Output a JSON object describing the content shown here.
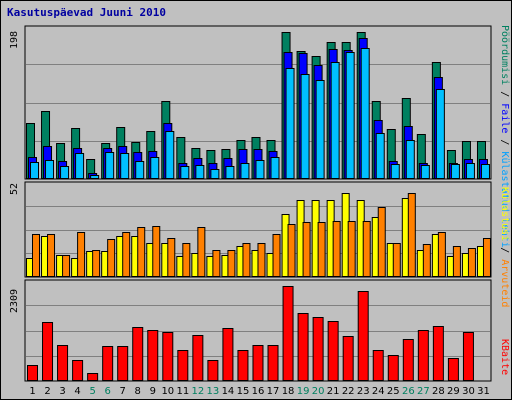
{
  "chart_data": {
    "title": "Kasutuspäevad Juuni 2010",
    "type": "bar",
    "categories": [
      "1",
      "2",
      "3",
      "4",
      "5",
      "6",
      "7",
      "8",
      "9",
      "10",
      "11",
      "12",
      "13",
      "14",
      "15",
      "16",
      "17",
      "18",
      "19",
      "20",
      "21",
      "22",
      "23",
      "24",
      "25",
      "26",
      "27",
      "28",
      "29",
      "30",
      "31"
    ],
    "weekend_days": [
      "5",
      "6",
      "12",
      "13",
      "19",
      "20",
      "26",
      "27"
    ],
    "weekend_color": "#008060",
    "weekday_color": "#000000",
    "panels": [
      {
        "id": "top",
        "ymax_label": "198",
        "ymax": 198,
        "right_label_parts": [
          {
            "text": "Pöördumisi",
            "color": "#008060"
          },
          {
            "text": " / ",
            "color": "#000000"
          },
          {
            "text": "Faile",
            "color": "#0000ff"
          },
          {
            "text": " / ",
            "color": "#000000"
          },
          {
            "text": "Külastatud lehti",
            "color": "#00a0ff"
          }
        ],
        "series": [
          {
            "name": "Pöördumisi",
            "color": "#008060",
            "values": [
              76,
              91,
              48,
              69,
              27,
              48,
              70,
              50,
              64,
              105,
              57,
              42,
              39,
              41,
              52,
              56,
              53,
              198,
              172,
              165,
              185,
              185,
              198,
              105,
              68,
              109,
              60,
              158,
              39,
              51,
              51
            ]
          },
          {
            "name": "Faile",
            "color": "#0000ff",
            "values": [
              30,
              44,
              24,
              42,
              8,
              42,
              45,
              37,
              38,
              76,
              22,
              28,
              21,
              28,
              41,
              40,
              38,
              171,
              170,
              153,
              175,
              174,
              190,
              80,
              24,
              72,
              21,
              138,
              21,
              27,
              27
            ]
          },
          {
            "name": "Külastatud lehti",
            "color": "#00c0ff",
            "values": [
              23,
              26,
              17,
              35,
              5,
              36,
              35,
              24,
              30,
              64,
              18,
              19,
              14,
              18,
              21,
              25,
              29,
              150,
              141,
              134,
              158,
              171,
              176,
              62,
              20,
              52,
              19,
              121,
              20,
              22,
              20
            ]
          }
        ]
      },
      {
        "id": "middle",
        "ymax_label": "52",
        "ymax": 52,
        "right_label_parts": [
          {
            "text": "Külastusi",
            "color": "#ffff00"
          },
          {
            "text": " / ",
            "color": "#000000"
          },
          {
            "text": "Arvuteid",
            "color": "#ff8000"
          }
        ],
        "series": [
          {
            "name": "Külastusi",
            "color": "#ffff00",
            "values": [
              11,
              24,
              13,
              11,
              15,
              15,
              24,
              24,
              20,
              20,
              12,
              14,
              12,
              13,
              18,
              16,
              14,
              37,
              45,
              45,
              45,
              49,
              45,
              35,
              20,
              46,
              16,
              25,
              12,
              14,
              18
            ]
          },
          {
            "name": "Arvuteid",
            "color": "#ff8000",
            "values": [
              25,
              25,
              13,
              26,
              16,
              22,
              26,
              29,
              30,
              23,
              20,
              29,
              16,
              16,
              20,
              20,
              25,
              31,
              32,
              32,
              33,
              33,
              33,
              41,
              20,
              49,
              19,
              26,
              18,
              17,
              23
            ]
          }
        ]
      },
      {
        "id": "bottom",
        "ymax_label": "2309",
        "ymax": 2309,
        "right_label_parts": [
          {
            "text": "KBaite",
            "color": "#ff0000"
          }
        ],
        "series": [
          {
            "name": "KBaite",
            "color": "#ff0000",
            "values": [
              391,
              1445,
              868,
              508,
              190,
              862,
              854,
              1315,
              1230,
              1186,
              753,
              1120,
              507,
              1295,
              742,
              866,
              879,
              2309,
              1641,
              1550,
              1467,
              1089,
              2193,
              764,
              632,
              1024,
              1229,
              1333,
              558,
              1185,
              0
            ]
          }
        ]
      }
    ]
  }
}
